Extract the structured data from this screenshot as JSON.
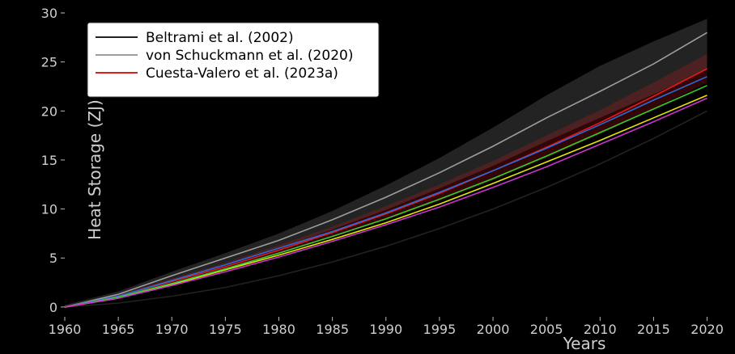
{
  "chart_data": {
    "type": "area",
    "xlabel": "Years",
    "ylabel": "Heat Storage (ZJ)",
    "x_ticks": [
      1960,
      1965,
      1970,
      1975,
      1980,
      1985,
      1990,
      1995,
      2000,
      2005,
      2010,
      2015,
      2020
    ],
    "y_ticks": [
      0,
      5,
      10,
      15,
      20,
      25,
      30
    ],
    "xlim": [
      1960,
      2022
    ],
    "ylim": [
      -1,
      30
    ],
    "grid": false,
    "legend_position": "top-left",
    "x": [
      1960,
      1965,
      1970,
      1975,
      1980,
      1985,
      1990,
      1995,
      2000,
      2005,
      2010,
      2015,
      2020
    ],
    "series": [
      {
        "name": "Beltrami et al. (2002)",
        "color": "#222222",
        "values": [
          0.0,
          0.4,
          1.1,
          2.0,
          3.2,
          4.6,
          6.2,
          8.0,
          10.0,
          12.2,
          14.6,
          17.2,
          20.0
        ]
      },
      {
        "name": "von Schuckmann et al. (2020)",
        "color": "#9e9e9e",
        "values": [
          0.0,
          1.3,
          3.2,
          5.0,
          6.8,
          8.9,
          11.2,
          13.7,
          16.4,
          19.3,
          22.0,
          24.8,
          28.0
        ],
        "band_upper": [
          0.2,
          1.6,
          3.6,
          5.5,
          7.5,
          9.8,
          12.4,
          15.2,
          18.3,
          21.6,
          24.6,
          27.1,
          29.4
        ],
        "band_lower": [
          -0.1,
          1.0,
          2.7,
          4.4,
          6.0,
          7.9,
          9.9,
          12.1,
          14.4,
          16.9,
          19.3,
          21.7,
          24.2
        ]
      },
      {
        "name": "Cuesta-Valero et al. (2023a)",
        "color": "#e41a1c",
        "values": [
          0.0,
          1.1,
          2.6,
          4.1,
          5.8,
          7.6,
          9.5,
          11.6,
          13.9,
          16.3,
          18.8,
          21.5,
          24.3
        ],
        "band_upper": [
          0.1,
          1.3,
          2.9,
          4.5,
          6.3,
          8.2,
          10.3,
          12.5,
          14.9,
          17.5,
          20.1,
          22.9,
          25.8
        ],
        "band_lower": [
          -0.1,
          0.9,
          2.3,
          3.8,
          5.4,
          7.1,
          8.9,
          10.8,
          12.9,
          15.2,
          17.6,
          20.2,
          22.9
        ]
      },
      {
        "color": "#2a6adb",
        "values": [
          0.0,
          1.1,
          2.7,
          4.3,
          6.0,
          7.7,
          9.6,
          11.7,
          13.9,
          16.2,
          18.6,
          21.1,
          23.5
        ]
      },
      {
        "color": "#e6e600",
        "values": [
          0.0,
          0.9,
          2.3,
          3.8,
          5.3,
          6.9,
          8.6,
          10.5,
          12.6,
          14.8,
          17.0,
          19.3,
          21.6
        ]
      },
      {
        "color": "#33cc33",
        "values": [
          0.0,
          1.0,
          2.4,
          3.9,
          5.5,
          7.2,
          9.0,
          11.0,
          13.1,
          15.4,
          17.8,
          20.2,
          22.6
        ]
      },
      {
        "color": "#cc33cc",
        "values": [
          0.0,
          0.9,
          2.2,
          3.6,
          5.1,
          6.7,
          8.4,
          10.2,
          12.2,
          14.3,
          16.6,
          18.9,
          21.3
        ]
      }
    ]
  }
}
